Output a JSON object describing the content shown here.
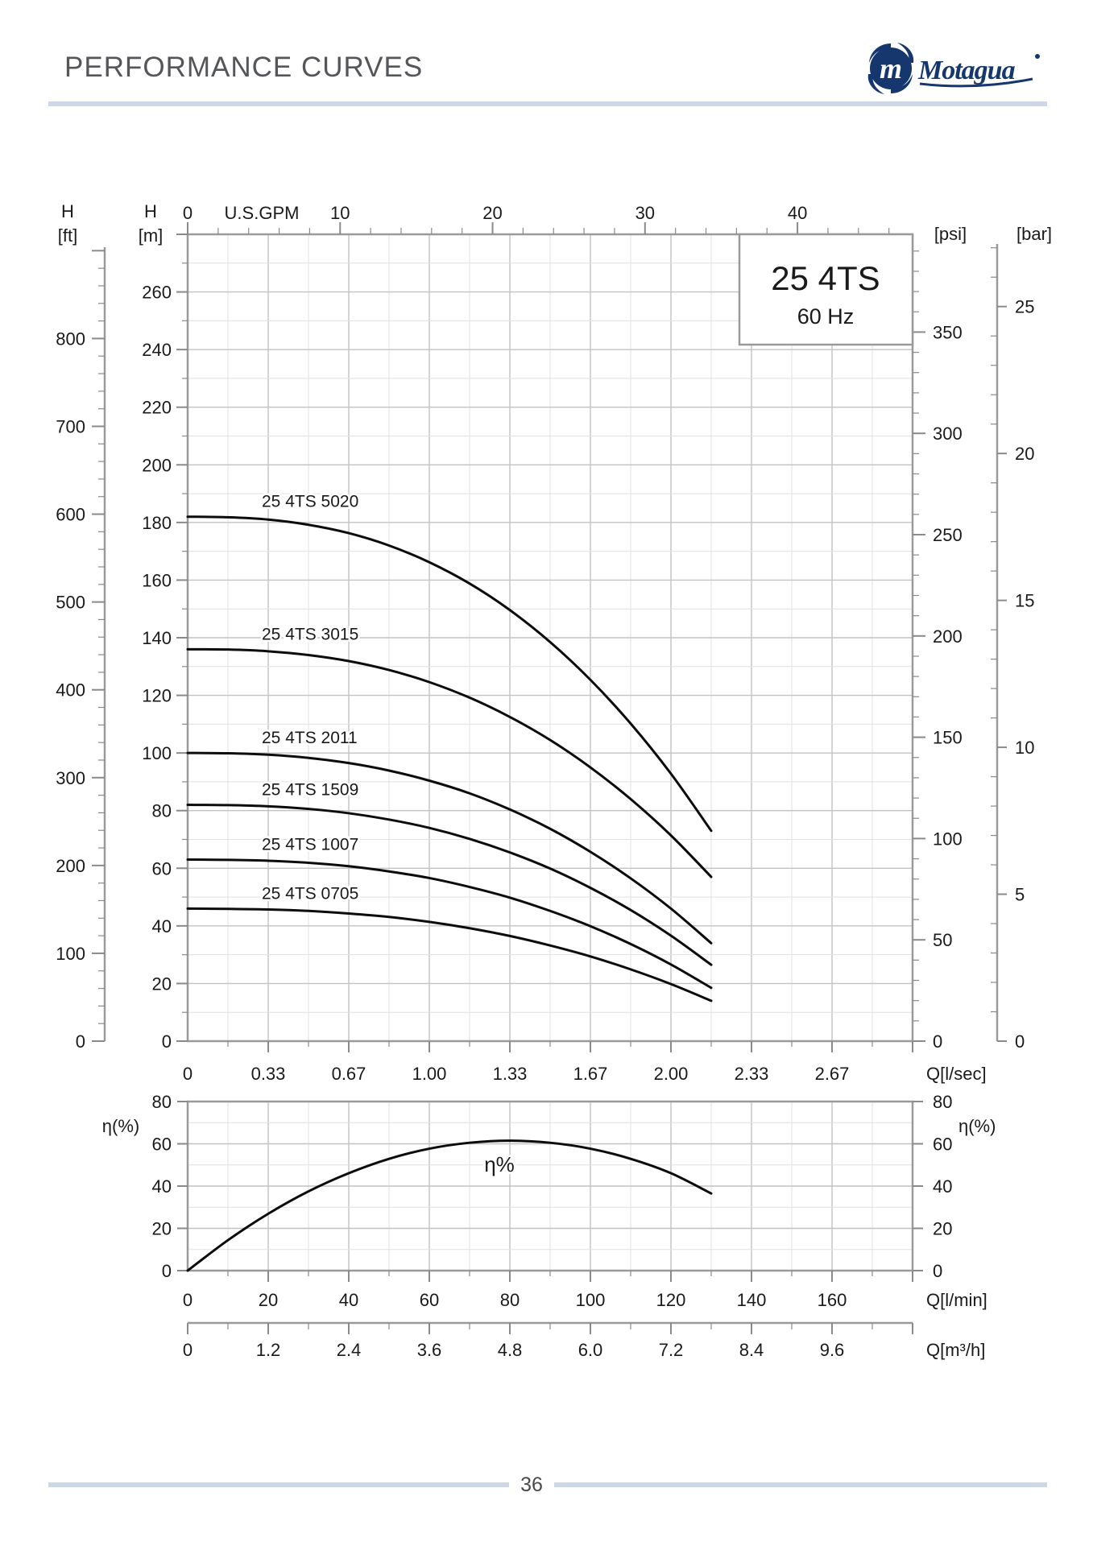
{
  "page": {
    "title": "PERFORMANCE CURVES",
    "page_number": "36"
  },
  "logo": {
    "brand": "Motagua",
    "mark_letter": "m",
    "color": "#16376e"
  },
  "model_box": {
    "model": "25 4TS",
    "frequency": "60 Hz"
  },
  "colors": {
    "curve": "#0c0c0c",
    "grid_minor": "#e0e0e0",
    "grid_major": "#c2c2c2",
    "axis": "#9a9a9a",
    "tick": "#8a8a8a",
    "text": "#1a1a1a",
    "accent_rule": "#ccd8e6",
    "title_gray": "#54565a",
    "logo_navy": "#16376e"
  },
  "chart_data": [
    {
      "type": "line",
      "title": "25 4TS head curves, 60 Hz",
      "x_unit": "l/min",
      "x": [
        0,
        10,
        20,
        30,
        40,
        50,
        60,
        70,
        80,
        90,
        100,
        110,
        120,
        130
      ],
      "series": [
        {
          "name": "25 4TS 5020",
          "values": [
            182,
            181.8,
            181,
            179.2,
            176.3,
            172,
            166.2,
            158.8,
            149.6,
            138.5,
            125.4,
            110.2,
            92.8,
            73
          ]
        },
        {
          "name": "25 4TS 3015",
          "values": [
            136,
            135.9,
            135.3,
            134,
            131.9,
            128.8,
            124.6,
            119.2,
            112.5,
            104.5,
            95,
            84,
            71.4,
            57
          ]
        },
        {
          "name": "25 4TS 2011",
          "values": [
            100,
            99.9,
            99.4,
            98.3,
            96.5,
            93.9,
            90.4,
            86,
            80.4,
            73.7,
            65.7,
            56.5,
            46,
            34
          ]
        },
        {
          "name": "25 4TS 1509",
          "values": [
            82,
            81.9,
            81.5,
            80.6,
            79.1,
            76.9,
            74,
            70.2,
            65.5,
            59.9,
            53.2,
            45.5,
            36.6,
            26.5
          ]
        },
        {
          "name": "25 4TS 1007",
          "values": [
            63,
            62.9,
            62.6,
            61.9,
            60.7,
            58.9,
            56.6,
            53.5,
            49.8,
            45.2,
            39.9,
            33.7,
            26.6,
            18.5
          ]
        },
        {
          "name": "25 4TS 0705",
          "values": [
            46,
            45.9,
            45.7,
            45.2,
            44.3,
            43.1,
            41.4,
            39.2,
            36.5,
            33.2,
            29.4,
            24.9,
            19.8,
            14
          ]
        }
      ],
      "ylim_m": [
        0,
        280
      ],
      "xlim_lmin": [
        0,
        180
      ],
      "grid": true,
      "axes": {
        "top_gpm": {
          "unit_label": "U.S.GPM",
          "ticks": [
            0,
            10,
            20,
            30,
            40
          ]
        },
        "left_ft": {
          "header_line1": "H",
          "header_line2": "[ft]",
          "ticks": [
            0,
            100,
            200,
            300,
            400,
            500,
            600,
            700,
            800
          ]
        },
        "left_m": {
          "header_line1": "H",
          "header_line2": "[m]",
          "ticks": [
            0,
            20,
            40,
            60,
            80,
            100,
            120,
            140,
            160,
            180,
            200,
            220,
            240,
            260
          ]
        },
        "right_psi": {
          "header": "[psi]",
          "ticks": [
            0,
            50,
            100,
            150,
            200,
            250,
            300,
            350
          ]
        },
        "right_bar": {
          "header": "[bar]",
          "ticks": [
            0,
            5,
            10,
            15,
            20,
            25
          ]
        },
        "bottom_lsec": {
          "unit_label": "Q[l/sec]",
          "ticks": [
            "0",
            "0.33",
            "0.67",
            "1.00",
            "1.33",
            "1.67",
            "2.00",
            "2.33",
            "2.67"
          ]
        }
      }
    },
    {
      "type": "line",
      "title": "efficiency curve",
      "x_unit": "l/min",
      "x": [
        0,
        10,
        20,
        30,
        40,
        50,
        60,
        70,
        80,
        90,
        100,
        110,
        120,
        130
      ],
      "series": [
        {
          "name": "η%",
          "values": [
            0,
            14.4,
            26.9,
            37.5,
            46.1,
            52.9,
            57.7,
            60.5,
            61.5,
            60.5,
            57.7,
            52.9,
            46.1,
            36.5
          ]
        }
      ],
      "ylim": [
        0,
        80
      ],
      "xlim_lmin": [
        0,
        180
      ],
      "grid": true,
      "annotation": "η%",
      "axes": {
        "left_eff": {
          "header": "η(%)",
          "ticks": [
            0,
            20,
            40,
            60,
            80
          ]
        },
        "right_eff": {
          "header": "η(%)",
          "ticks": [
            0,
            20,
            40,
            60,
            80
          ]
        },
        "bottom_lmin": {
          "unit_label": "Q[l/min]",
          "ticks": [
            0,
            20,
            40,
            60,
            80,
            100,
            120,
            140,
            160
          ]
        },
        "bottom_m3h": {
          "unit_label": "Q[m³/h]",
          "ticks": [
            "0",
            "1.2",
            "2.4",
            "3.6",
            "4.8",
            "6.0",
            "7.2",
            "8.4",
            "9.6"
          ]
        }
      }
    }
  ]
}
